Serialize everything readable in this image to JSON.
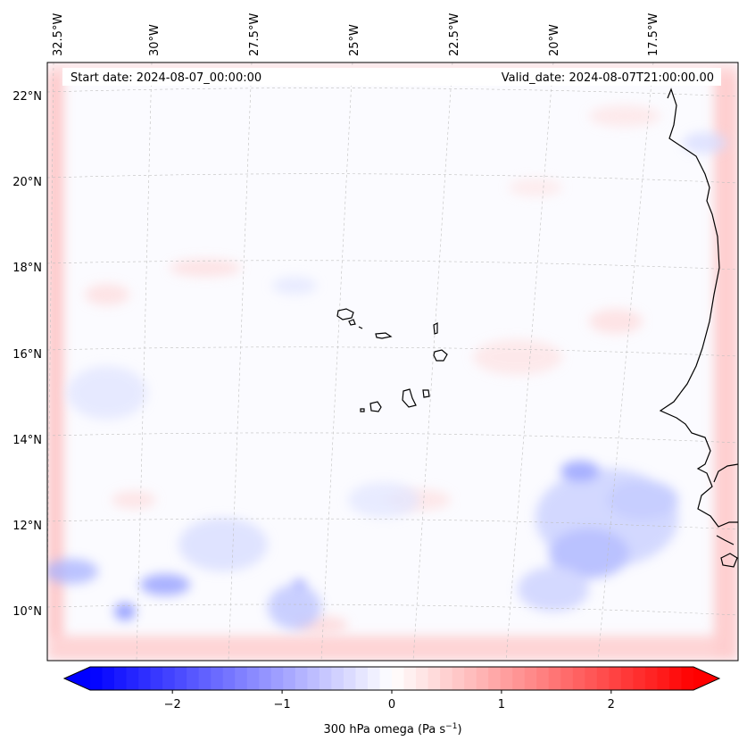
{
  "map": {
    "start_date": "Start date: 2024-08-07_00:00:00",
    "valid_date": "Valid_date: 2024-08-07T21:00:00.00",
    "lon_labels": [
      "32.5°W",
      "30°W",
      "27.5°W",
      "25°W",
      "22.5°W",
      "20°W",
      "17.5°W"
    ],
    "lat_labels": [
      "22°N",
      "20°N",
      "18°N",
      "16°N",
      "14°N",
      "12°N",
      "10°N"
    ]
  },
  "colorbar": {
    "ticks": [
      "−2",
      "−1",
      "0",
      "1",
      "2"
    ],
    "tick_values": [
      -2,
      -1,
      0,
      1,
      2
    ],
    "range": [
      -2.75,
      2.75
    ],
    "label": "300 hPa omega (Pa s",
    "label_sup": "−1",
    "label_end": ")",
    "colors": {
      "negative": "#0000ff",
      "zero": "#ffffff",
      "positive": "#ff0000"
    }
  }
}
